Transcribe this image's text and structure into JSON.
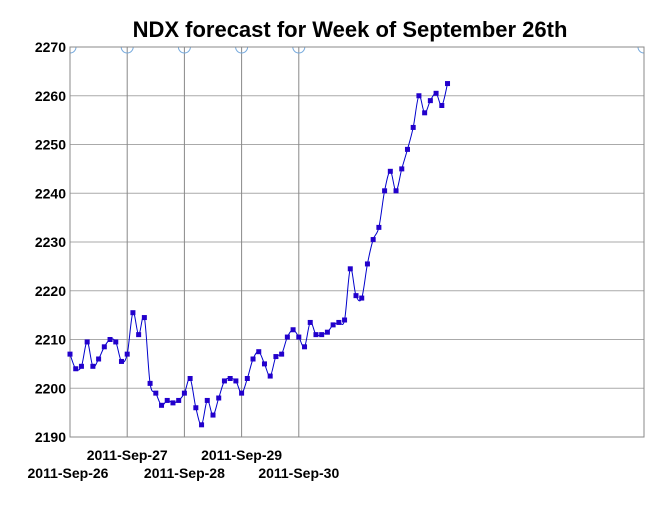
{
  "chart_data": {
    "type": "line",
    "title": "NDX forecast for Week of September 26th",
    "xlabel": "",
    "ylabel": "",
    "ylim": [
      2190,
      2270
    ],
    "yticks": [
      2190,
      2200,
      2210,
      2220,
      2230,
      2240,
      2250,
      2260,
      2270
    ],
    "xticks": [
      {
        "index": 0,
        "label": "2011-Sep-26"
      },
      {
        "index": 10,
        "label": "2011-Sep-27"
      },
      {
        "index": 20,
        "label": "2011-Sep-28"
      },
      {
        "index": 30,
        "label": "2011-Sep-29"
      },
      {
        "index": 40,
        "label": "2011-Sep-30"
      }
    ],
    "grid": true,
    "line_color": "#0000cc",
    "marker_color": "#2200cc",
    "series": [
      {
        "values": [
          2207.0,
          2204.0,
          2204.5,
          2209.5,
          2204.5,
          2206.0,
          2208.5,
          2210.0,
          2209.5,
          2205.5,
          2207.0,
          2215.5,
          2211.0,
          2214.5,
          2201.0,
          2199.0,
          2196.5,
          2197.5,
          2197.0,
          2197.5,
          2199.0,
          2202.0,
          2196.0,
          2192.5,
          2197.5,
          2194.5,
          2198.0,
          2201.5,
          2202.0,
          2201.5,
          2199.0,
          2202.0,
          2206.0,
          2207.5,
          2205.0,
          2202.5,
          2206.5,
          2207.0,
          2210.5,
          2212.0,
          2210.5,
          2208.5,
          2213.5,
          2211.0,
          2211.0,
          2211.5,
          2213.0,
          2213.5,
          2214.0,
          2224.5,
          2219.0,
          2218.5,
          2225.5,
          2230.5,
          2233.0,
          2240.5,
          2244.5,
          2240.5,
          2245.0,
          2249.0,
          2253.5,
          2260.0,
          2256.5,
          2259.0,
          2260.5,
          2258.0,
          2262.5
        ]
      }
    ]
  }
}
